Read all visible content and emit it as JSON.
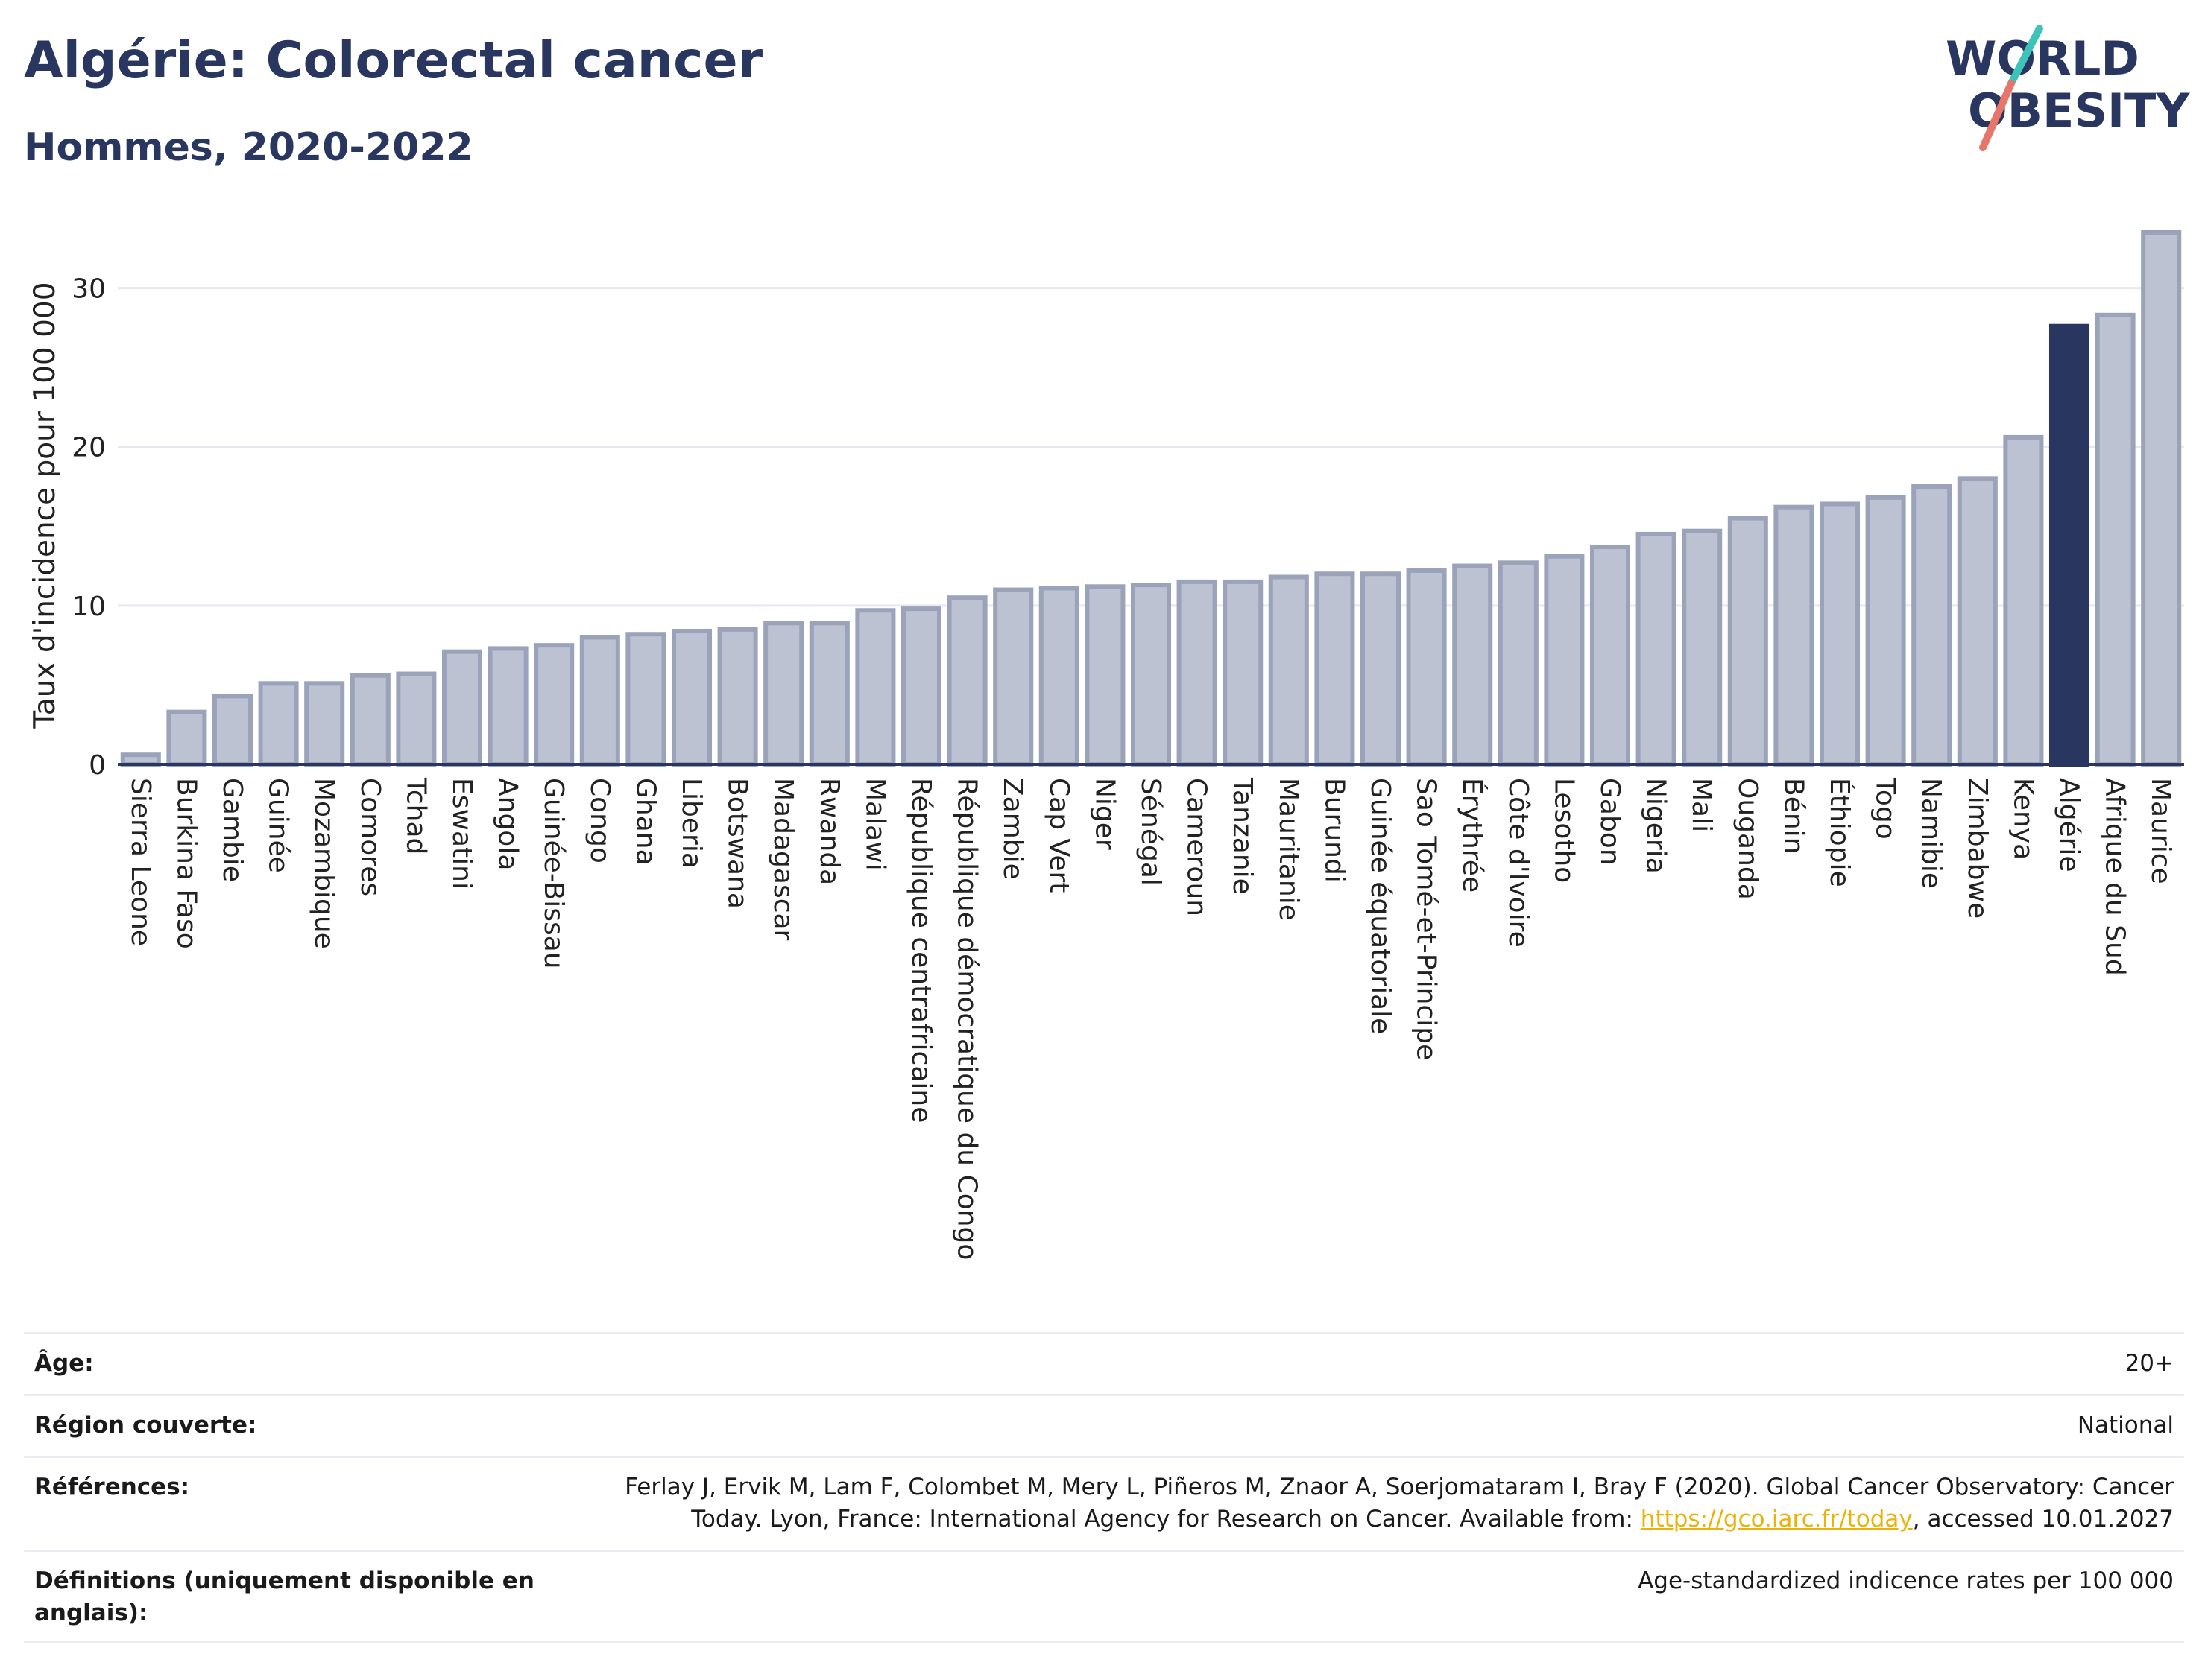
{
  "title": "Algérie: Colorectal cancer",
  "subtitle": "Hommes, 2020-2022",
  "logo": {
    "line1": "WORLD",
    "line2": "OBESITY"
  },
  "colors": {
    "bar": "#bdc2d2",
    "bar_border": "#9ba3bb",
    "highlight": "#283660",
    "text": "#283660",
    "grid": "#e6e8ef",
    "logo_teal": "#3ec3b8",
    "logo_coral": "#e8756a"
  },
  "chart_data": {
    "type": "bar",
    "ylabel": "Taux d'incidence pour 100 000",
    "ylim": [
      0,
      35
    ],
    "yticks": [
      0,
      10,
      20,
      30
    ],
    "grid": true,
    "highlight": "Algérie",
    "categories": [
      "Sierra Leone",
      "Burkina Faso",
      "Gambie",
      "Guinée",
      "Mozambique",
      "Comores",
      "Tchad",
      "Eswatini",
      "Angola",
      "Guinée-Bissau",
      "Congo",
      "Ghana",
      "Liberia",
      "Botswana",
      "Madagascar",
      "Rwanda",
      "Malawi",
      "République centrafricaine",
      "République démocratique du Congo",
      "Zambie",
      "Cap Vert",
      "Niger",
      "Sénégal",
      "Cameroun",
      "Tanzanie",
      "Mauritanie",
      "Burundi",
      "Guinée équatoriale",
      "Sao Tomé-et-Principe",
      "Érythrée",
      "Côte d'Ivoire",
      "Lesotho",
      "Gabon",
      "Nigeria",
      "Mali",
      "Ouganda",
      "Bénin",
      "Éthiopie",
      "Togo",
      "Namibie",
      "Zimbabwe",
      "Kenya",
      "Algérie",
      "Afrique du Sud",
      "Maurice"
    ],
    "values": [
      0.6,
      3.3,
      4.3,
      5.1,
      5.1,
      5.6,
      5.7,
      7.1,
      7.3,
      7.5,
      8.0,
      8.2,
      8.4,
      8.5,
      8.9,
      8.9,
      9.7,
      9.8,
      10.5,
      11.0,
      11.1,
      11.2,
      11.3,
      11.5,
      11.5,
      11.8,
      12.0,
      12.0,
      12.2,
      12.5,
      12.7,
      13.1,
      13.7,
      14.5,
      14.7,
      15.5,
      16.2,
      16.4,
      16.8,
      17.5,
      18.0,
      20.6,
      27.6,
      28.3,
      33.5
    ]
  },
  "table": [
    {
      "label": "Âge:",
      "value": "20+"
    },
    {
      "label": "Région couverte:",
      "value": "National"
    },
    {
      "label": "Références:",
      "value_pre": "Ferlay J, Ervik M, Lam F, Colombet M, Mery L, Piñeros M, Znaor A, Soerjomataram I, Bray F (2020). Global Cancer Observatory: Cancer Today. Lyon, France: International Agency for Research on Cancer. Available from: ",
      "link": "https://gco.iarc.fr/today",
      "value_post": ", accessed 10.01.2027"
    },
    {
      "label": "Définitions (uniquement disponible en anglais):",
      "value": "Age-standardized indicence rates per 100 000"
    }
  ]
}
